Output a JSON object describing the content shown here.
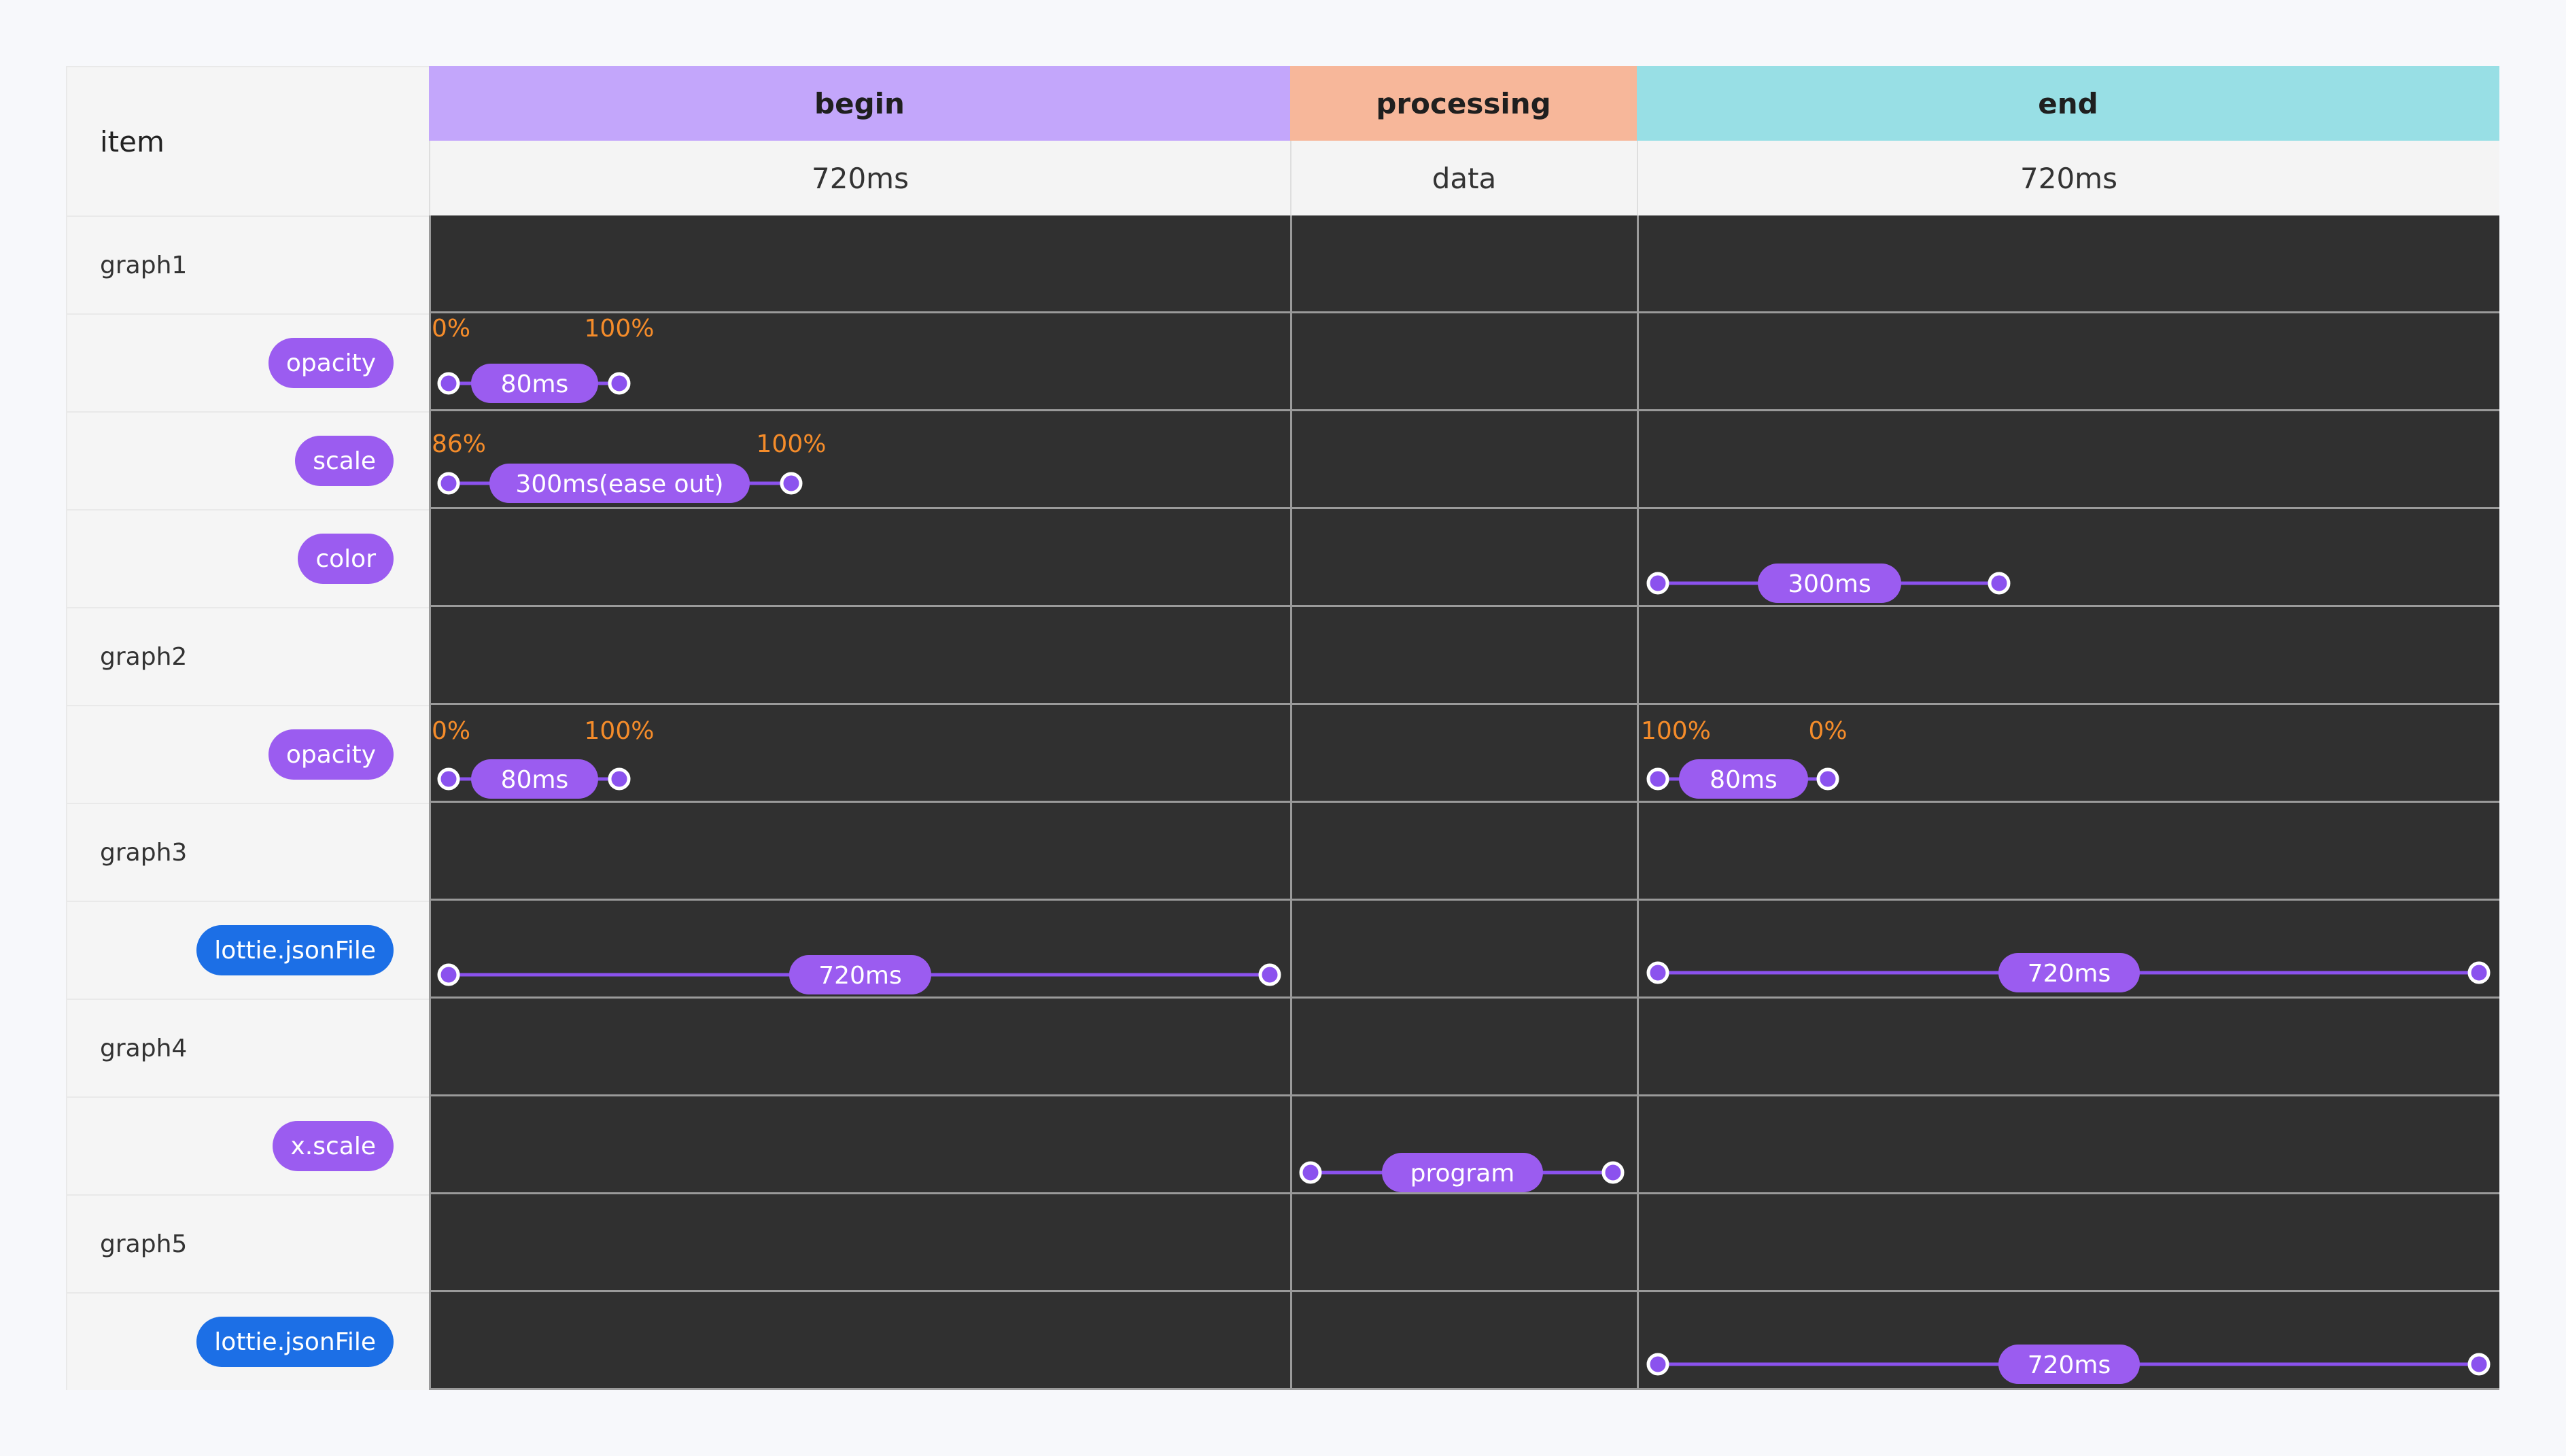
{
  "header": {
    "item_label": "item",
    "phases": [
      {
        "label": "begin",
        "sub": "720ms",
        "color": "#c3a6fb"
      },
      {
        "label": "processing",
        "sub": "data",
        "color": "#f7b79a"
      },
      {
        "label": "end",
        "sub": "720ms",
        "color": "#98dfe5"
      }
    ]
  },
  "rows": [
    {
      "type": "group",
      "label": "graph1"
    },
    {
      "type": "prop",
      "label": "opacity",
      "pill": "purple"
    },
    {
      "type": "prop",
      "label": "scale",
      "pill": "purple"
    },
    {
      "type": "prop",
      "label": "color",
      "pill": "purple"
    },
    {
      "type": "group",
      "label": "graph2"
    },
    {
      "type": "prop",
      "label": "opacity",
      "pill": "purple"
    },
    {
      "type": "group",
      "label": "graph3"
    },
    {
      "type": "prop",
      "label": "lottie.jsonFile",
      "pill": "blue"
    },
    {
      "type": "group",
      "label": "graph4"
    },
    {
      "type": "prop",
      "label": "x.scale",
      "pill": "purple"
    },
    {
      "type": "group",
      "label": "graph5"
    },
    {
      "type": "prop",
      "label": "lottie.jsonFile",
      "pill": "blue"
    }
  ],
  "timelines": [
    {
      "label": "80ms",
      "start_label": "0%",
      "end_label": "100%"
    },
    {
      "label": "300ms(ease out)",
      "start_label": "86%",
      "end_label": "100%"
    },
    {
      "label": "300ms",
      "start_label": "",
      "end_label": ""
    },
    {
      "label": "80ms",
      "start_label": "0%",
      "end_label": "100%"
    },
    {
      "label": "80ms",
      "start_label": "100%",
      "end_label": "0%"
    },
    {
      "label": "720ms",
      "start_label": "",
      "end_label": ""
    },
    {
      "label": "720ms",
      "start_label": "",
      "end_label": ""
    },
    {
      "label": "program",
      "start_label": "",
      "end_label": ""
    },
    {
      "label": "720ms",
      "start_label": "",
      "end_label": ""
    }
  ],
  "colors": {
    "track": "#8b52ee",
    "pill": "#9b5cf0",
    "handle_fill": "#8b52ee",
    "handle_stroke": "#ffffff",
    "percent_text": "#f58c2a",
    "dark_cell": "#303030",
    "grid_line": "#9a9a9a"
  }
}
